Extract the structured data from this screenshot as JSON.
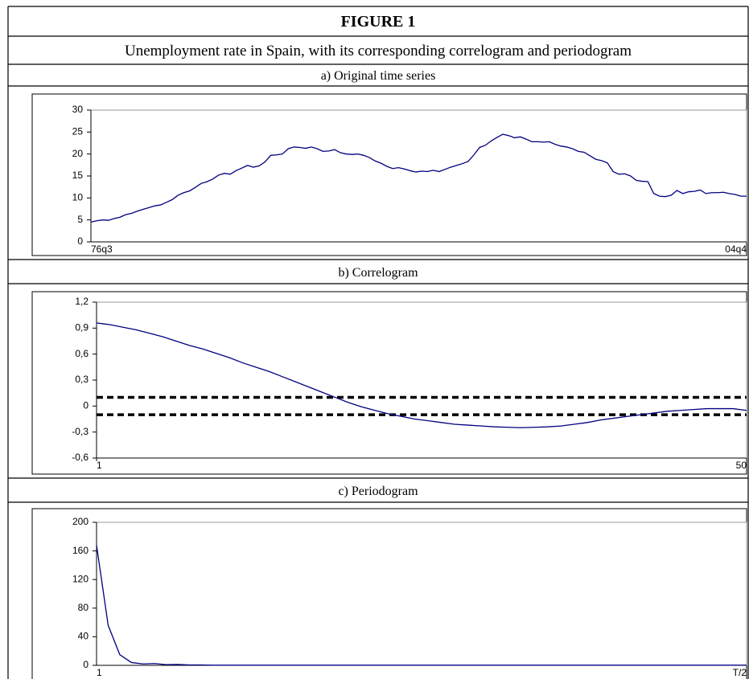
{
  "header": {
    "title": "FIGURE 1",
    "subtitle": "Unemployment rate in Spain, with its corresponding correlogram and periodogram"
  },
  "chart_data": [
    {
      "type": "line",
      "title": "a) Original time series",
      "categories": [
        "76q3",
        null,
        null,
        null,
        null,
        null,
        null,
        null,
        null,
        null,
        null,
        null,
        null,
        null,
        null,
        null,
        null,
        null,
        null,
        null,
        null,
        null,
        null,
        null,
        null,
        null,
        null,
        null,
        null,
        null,
        null,
        null,
        null,
        null,
        null,
        null,
        null,
        null,
        null,
        null,
        null,
        null,
        null,
        null,
        null,
        null,
        null,
        null,
        null,
        null,
        null,
        null,
        null,
        null,
        null,
        null,
        null,
        null,
        null,
        null,
        null,
        null,
        null,
        null,
        null,
        null,
        null,
        null,
        null,
        null,
        null,
        null,
        null,
        null,
        null,
        null,
        null,
        null,
        null,
        null,
        null,
        null,
        null,
        null,
        null,
        null,
        null,
        null,
        null,
        null,
        null,
        null,
        null,
        null,
        null,
        null,
        null,
        null,
        null,
        null,
        null,
        null,
        null,
        null,
        null,
        null,
        null,
        null,
        null,
        null,
        null,
        null,
        null,
        "04q4"
      ],
      "series": [
        {
          "color": "#000080",
          "values": [
            4.5,
            4.8,
            5.0,
            4.9,
            5.3,
            5.6,
            6.2,
            6.5,
            7.0,
            7.4,
            7.8,
            8.2,
            8.4,
            9.0,
            9.6,
            10.6,
            11.2,
            11.6,
            12.4,
            13.3,
            13.7,
            14.3,
            15.2,
            15.6,
            15.4,
            16.2,
            16.8,
            17.4,
            17.0,
            17.3,
            18.2,
            19.7,
            19.8,
            20.0,
            21.2,
            21.6,
            21.5,
            21.3,
            21.6,
            21.2,
            20.6,
            20.7,
            21.0,
            20.3,
            20.0,
            19.9,
            20.0,
            19.7,
            19.2,
            18.4,
            17.9,
            17.2,
            16.7,
            16.9,
            16.6,
            16.2,
            15.9,
            16.1,
            16.0,
            16.3,
            16.0,
            16.5,
            17.0,
            17.4,
            17.8,
            18.3,
            19.8,
            21.5,
            22.0,
            23.0,
            23.8,
            24.5,
            24.2,
            23.7,
            23.9,
            23.4,
            22.8,
            22.8,
            22.7,
            22.8,
            22.2,
            21.8,
            21.6,
            21.2,
            20.6,
            20.4,
            19.6,
            18.8,
            18.5,
            18.0,
            16.0,
            15.4,
            15.5,
            15.0,
            14.0,
            13.8,
            13.7,
            11.0,
            10.4,
            10.3,
            10.6,
            11.7,
            11.0,
            11.4,
            11.5,
            11.8,
            11.0,
            11.2,
            11.2,
            11.3,
            11.0,
            10.8,
            10.4,
            10.4
          ]
        }
      ],
      "ylim": [
        0,
        30
      ],
      "yticks": [
        0,
        5,
        10,
        15,
        20,
        25,
        30
      ]
    },
    {
      "type": "line",
      "title": "b) Correlogram",
      "x": [
        1,
        2,
        3,
        4,
        5,
        6,
        7,
        8,
        9,
        10,
        11,
        12,
        13,
        14,
        15,
        16,
        17,
        18,
        19,
        20,
        21,
        22,
        23,
        24,
        25,
        26,
        27,
        28,
        29,
        30,
        31,
        32,
        33,
        34,
        35,
        36,
        37,
        38,
        39,
        40,
        41,
        42,
        43,
        44,
        45,
        46,
        47,
        48,
        49,
        50
      ],
      "series": [
        {
          "color": "#000080",
          "values": [
            0.96,
            0.94,
            0.91,
            0.88,
            0.84,
            0.8,
            0.75,
            0.7,
            0.66,
            0.61,
            0.56,
            0.5,
            0.45,
            0.4,
            0.34,
            0.28,
            0.22,
            0.16,
            0.1,
            0.04,
            -0.01,
            -0.05,
            -0.09,
            -0.12,
            -0.15,
            -0.17,
            -0.19,
            -0.21,
            -0.22,
            -0.23,
            -0.24,
            -0.245,
            -0.25,
            -0.245,
            -0.24,
            -0.23,
            -0.21,
            -0.19,
            -0.16,
            -0.14,
            -0.12,
            -0.1,
            -0.08,
            -0.06,
            -0.05,
            -0.04,
            -0.03,
            -0.03,
            -0.03,
            -0.05
          ]
        }
      ],
      "bands": [
        0.1,
        -0.1
      ],
      "band_color": "#000000",
      "xlim": [
        1,
        50
      ],
      "xticks": [
        1,
        50
      ],
      "ylim": [
        -0.6,
        1.2
      ],
      "yticks": [
        {
          "value": -0.6,
          "label": "-0,6"
        },
        {
          "value": -0.3,
          "label": "-0,3"
        },
        0,
        {
          "value": 0.3,
          "label": "0,3"
        },
        {
          "value": 0.6,
          "label": "0,6"
        },
        {
          "value": 0.9,
          "label": "0,9"
        },
        {
          "value": 1.2,
          "label": "1,2"
        }
      ]
    },
    {
      "type": "line",
      "title": "c)  Periodogram",
      "categories": [
        "1",
        null,
        null,
        null,
        null,
        null,
        null,
        null,
        null,
        null,
        null,
        null,
        null,
        null,
        null,
        null,
        null,
        null,
        null,
        null,
        null,
        null,
        null,
        null,
        null,
        null,
        null,
        null,
        null,
        null,
        null,
        null,
        null,
        null,
        null,
        null,
        null,
        null,
        null,
        null,
        null,
        null,
        null,
        null,
        null,
        null,
        null,
        null,
        null,
        null,
        null,
        null,
        null,
        null,
        null,
        null,
        "T/2"
      ],
      "series": [
        {
          "color": "#000080",
          "values": [
            168,
            56,
            15,
            4,
            2,
            2.5,
            1,
            1.2,
            0.6,
            0.5,
            0.2,
            0.2,
            0.2,
            0.2,
            0.2,
            0.2,
            0.2,
            0.2,
            0.2,
            0.2,
            0.2,
            0.2,
            0.2,
            0.2,
            0.2,
            0.2,
            0.2,
            0.2,
            0.2,
            0.2,
            0.2,
            0.2,
            0.2,
            0.2,
            0.2,
            0.2,
            0.2,
            0.2,
            0.2,
            0.2,
            0.2,
            0.2,
            0.2,
            0.2,
            0.2,
            0.2,
            0.2,
            0.2,
            0.2,
            0.2,
            0.2,
            0.2,
            0.2,
            0.2,
            0.2,
            0.2,
            0.2
          ]
        }
      ],
      "ylim": [
        0,
        200
      ],
      "yticks": [
        0,
        40,
        80,
        120,
        160,
        200
      ]
    }
  ]
}
